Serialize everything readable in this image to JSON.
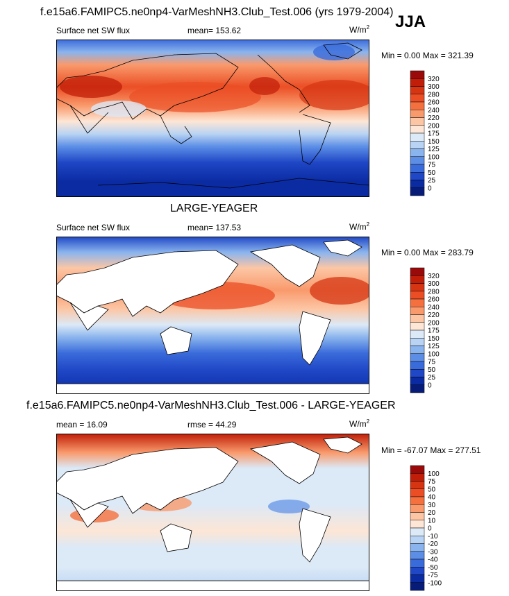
{
  "season": "JJA",
  "chart_data": [
    {
      "type": "heatmap",
      "title": "f.e15a6.FAMIPC5.ne0np4-VarMeshNH3.Club_Test.006 (yrs 1979-2004)",
      "left_label": "Surface net SW flux",
      "center_label": "mean= 153.62",
      "units_base": "W/m",
      "units_exp": "2",
      "minmax": "Min =   0.00 Max = 321.39",
      "levels": [
        "320",
        "300",
        "280",
        "260",
        "240",
        "220",
        "200",
        "175",
        "150",
        "125",
        "100",
        "75",
        "50",
        "25",
        "0"
      ],
      "colors": [
        "#9b0a0a",
        "#c01e08",
        "#d63513",
        "#eb4e25",
        "#f4703f",
        "#f99a6c",
        "#fcc6a5",
        "#fde6d5",
        "#dce9f7",
        "#b8d3f3",
        "#8ab4ee",
        "#5c8ee6",
        "#3a6bdb",
        "#1f47c6",
        "#0b2ba3",
        "#061c78"
      ]
    },
    {
      "type": "heatmap",
      "title": "LARGE-YEAGER",
      "left_label": "Surface net SW flux",
      "center_label": "mean= 137.53",
      "units_base": "W/m",
      "units_exp": "2",
      "minmax": "Min =   0.00 Max = 283.79",
      "levels": [
        "320",
        "300",
        "280",
        "260",
        "240",
        "220",
        "200",
        "175",
        "150",
        "125",
        "100",
        "75",
        "50",
        "25",
        "0"
      ],
      "colors": [
        "#9b0a0a",
        "#c01e08",
        "#d63513",
        "#eb4e25",
        "#f4703f",
        "#f99a6c",
        "#fcc6a5",
        "#fde6d5",
        "#dce9f7",
        "#b8d3f3",
        "#8ab4ee",
        "#5c8ee6",
        "#3a6bdb",
        "#1f47c6",
        "#0b2ba3",
        "#061c78"
      ]
    },
    {
      "type": "heatmap",
      "title": "f.e15a6.FAMIPC5.ne0np4-VarMeshNH3.Club_Test.006 - LARGE-YEAGER",
      "left_label": "mean =  16.09",
      "center_label": "rmse =  44.29",
      "units_base": "W/m",
      "units_exp": "2",
      "minmax": "Min = -67.07 Max = 277.51",
      "levels": [
        "100",
        "75",
        "50",
        "40",
        "30",
        "20",
        "10",
        "0",
        "-10",
        "-20",
        "-30",
        "-40",
        "-50",
        "-75",
        "-100"
      ],
      "colors": [
        "#9b0a0a",
        "#c01e08",
        "#d63513",
        "#eb4e25",
        "#f4703f",
        "#f99a6c",
        "#fcc6a5",
        "#fde6d5",
        "#dce9f7",
        "#b8d3f3",
        "#8ab4ee",
        "#5c8ee6",
        "#3a6bdb",
        "#1f47c6",
        "#0b2ba3",
        "#061c78"
      ]
    }
  ]
}
